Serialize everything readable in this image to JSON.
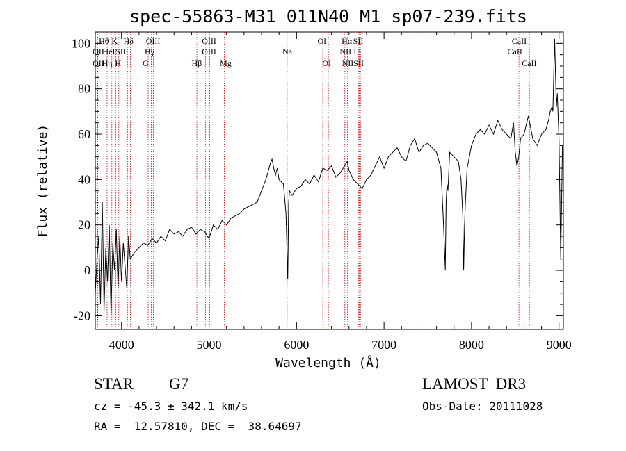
{
  "chart_data": {
    "type": "line",
    "title": "spec-55863-M31_011N40_M1_sp07-239.fits",
    "xlabel": "Wavelength (Å)",
    "ylabel": "Flux (relative)",
    "xlim": [
      3700,
      9050
    ],
    "ylim": [
      -26,
      105
    ],
    "xticks": [
      4000,
      5000,
      6000,
      7000,
      8000,
      9000
    ],
    "yticks": [
      -20,
      0,
      20,
      40,
      60,
      80,
      100
    ],
    "series": [
      {
        "name": "flux",
        "x": [
          3700,
          3720,
          3740,
          3760,
          3780,
          3800,
          3820,
          3840,
          3860,
          3880,
          3900,
          3920,
          3940,
          3960,
          3980,
          4000,
          4020,
          4040,
          4060,
          4080,
          4100,
          4150,
          4200,
          4250,
          4300,
          4350,
          4400,
          4450,
          4500,
          4550,
          4600,
          4650,
          4700,
          4750,
          4800,
          4850,
          4900,
          4950,
          5000,
          5050,
          5100,
          5150,
          5200,
          5250,
          5300,
          5350,
          5400,
          5450,
          5500,
          5550,
          5600,
          5650,
          5700,
          5720,
          5740,
          5760,
          5780,
          5800,
          5850,
          5880,
          5900,
          5910,
          5920,
          5950,
          6000,
          6050,
          6100,
          6150,
          6200,
          6250,
          6300,
          6350,
          6400,
          6450,
          6500,
          6550,
          6580,
          6600,
          6650,
          6700,
          6750,
          6800,
          6850,
          6900,
          6950,
          7000,
          7050,
          7100,
          7150,
          7200,
          7250,
          7300,
          7350,
          7400,
          7450,
          7500,
          7550,
          7600,
          7650,
          7680,
          7700,
          7710,
          7720,
          7730,
          7750,
          7800,
          7850,
          7880,
          7900,
          7910,
          7920,
          7930,
          7950,
          8000,
          8050,
          8100,
          8150,
          8200,
          8250,
          8300,
          8350,
          8400,
          8450,
          8480,
          8500,
          8520,
          8540,
          8560,
          8600,
          8650,
          8700,
          8750,
          8800,
          8850,
          8880,
          8900,
          8920,
          8930,
          8950,
          8970,
          8980,
          9000,
          9020,
          9040
        ],
        "values": [
          -10,
          5,
          15,
          -15,
          30,
          -18,
          10,
          -5,
          20,
          -20,
          12,
          0,
          18,
          -8,
          15,
          -5,
          12,
          2,
          -8,
          15,
          5,
          8,
          10,
          12,
          11,
          14,
          12,
          15,
          13,
          18,
          16,
          17,
          15,
          18,
          19,
          16,
          18,
          17,
          14,
          20,
          18,
          22,
          20,
          23,
          24,
          25,
          27,
          28,
          29,
          30,
          35,
          40,
          47,
          49,
          45,
          42,
          45,
          40,
          38,
          25,
          -4,
          30,
          35,
          33,
          36,
          37,
          40,
          38,
          42,
          39,
          45,
          44,
          46,
          41,
          43,
          46,
          48,
          44,
          40,
          38,
          36,
          40,
          42,
          46,
          50,
          45,
          50,
          52,
          54,
          50,
          48,
          55,
          58,
          52,
          55,
          56,
          54,
          52,
          45,
          20,
          0,
          30,
          38,
          35,
          52,
          50,
          48,
          40,
          25,
          0,
          20,
          30,
          45,
          55,
          60,
          62,
          60,
          64,
          60,
          66,
          62,
          60,
          58,
          65,
          52,
          46,
          50,
          58,
          60,
          68,
          58,
          55,
          60,
          62,
          66,
          70,
          72,
          70,
          102,
          72,
          78,
          58,
          5,
          55
        ],
        "color": "#000000"
      }
    ],
    "line_markers": [
      {
        "name": "H-theta",
        "wavelength": 3798,
        "label": "Hθ",
        "row": 1,
        "label_wl": 3798
      },
      {
        "name": "O-II-1",
        "wavelength": 3727,
        "label": "OII",
        "row": 2,
        "label_wl": 3735
      },
      {
        "name": "O-II-2",
        "wavelength": 3729,
        "label": "OII",
        "row": 3,
        "label_wl": 3735
      },
      {
        "name": "H-eta",
        "wavelength": 3835,
        "label": "Hη",
        "row": 3,
        "label_wl": 3835
      },
      {
        "name": "He-I",
        "wavelength": 3889,
        "label": "HeI",
        "row": 2,
        "label_wl": 3855
      },
      {
        "name": "K",
        "wavelength": 3934,
        "label": "K",
        "row": 1,
        "label_wl": 3920
      },
      {
        "name": "S-II-a",
        "wavelength": 4068,
        "label": "SII",
        "row": 2,
        "label_wl": 3990
      },
      {
        "name": "H",
        "wavelength": 3969,
        "label": "H",
        "row": 3,
        "label_wl": 3960
      },
      {
        "name": "H-delta",
        "wavelength": 4102,
        "label": "Hδ",
        "row": 1,
        "label_wl": 4080
      },
      {
        "name": "O-III-4363",
        "wavelength": 4363,
        "label": "OIII",
        "row": 1,
        "label_wl": 4360
      },
      {
        "name": "H-gamma",
        "wavelength": 4340,
        "label": "Hγ",
        "row": 2,
        "label_wl": 4320
      },
      {
        "name": "G",
        "wavelength": 4304,
        "label": "G",
        "row": 3,
        "label_wl": 4275
      },
      {
        "name": "H-beta",
        "wavelength": 4861,
        "label": "Hβ",
        "row": 3,
        "label_wl": 4860
      },
      {
        "name": "O-III-4959",
        "wavelength": 4959,
        "label": "OIII",
        "row": 1,
        "label_wl": 5000
      },
      {
        "name": "O-III-5007",
        "wavelength": 5007,
        "label": "OIII",
        "row": 2,
        "label_wl": 5000
      },
      {
        "name": "Mg",
        "wavelength": 5175,
        "label": "Mg",
        "row": 3,
        "label_wl": 5190
      },
      {
        "name": "Na",
        "wavelength": 5893,
        "label": "Na",
        "row": 2,
        "label_wl": 5895
      },
      {
        "name": "O-I-6300",
        "wavelength": 6300,
        "label": "OI",
        "row": 1,
        "label_wl": 6290
      },
      {
        "name": "O-I-6364",
        "wavelength": 6364,
        "label": "OI",
        "row": 3,
        "label_wl": 6345
      },
      {
        "name": "N-II-6548",
        "wavelength": 6548,
        "label": "NII",
        "row": 2,
        "label_wl": 6560
      },
      {
        "name": "H-alpha",
        "wavelength": 6563,
        "label": "Hα",
        "row": 1,
        "label_wl": 6575
      },
      {
        "name": "N-II-6583",
        "wavelength": 6583,
        "label": "NII",
        "row": 3,
        "label_wl": 6585
      },
      {
        "name": "S-II-6716",
        "wavelength": 6716,
        "label": "SII",
        "row": 1,
        "label_wl": 6705
      },
      {
        "name": "Li",
        "wavelength": 6707,
        "label": "Li",
        "row": 2,
        "label_wl": 6695
      },
      {
        "name": "S-II-6731",
        "wavelength": 6731,
        "label": "SII",
        "row": 3,
        "label_wl": 6710
      },
      {
        "name": "Ca-II-8498",
        "wavelength": 8498,
        "label": "CaII",
        "row": 2,
        "label_wl": 8495
      },
      {
        "name": "Ca-II-8542",
        "wavelength": 8542,
        "label": "CaII",
        "row": 1,
        "label_wl": 8545
      },
      {
        "name": "Ca-II-8662",
        "wavelength": 8662,
        "label": "CaII",
        "row": 3,
        "label_wl": 8660
      }
    ],
    "marker_color": "#cc0000"
  },
  "info": {
    "class": "STAR",
    "subclass": "G7",
    "survey": "LAMOST  DR3",
    "redshift": "cz = -45.3 ± 342.1 km/s",
    "obs_date": "Obs-Date: 20111028",
    "coords": "RA =  12.57810, DEC =  38.64697"
  }
}
